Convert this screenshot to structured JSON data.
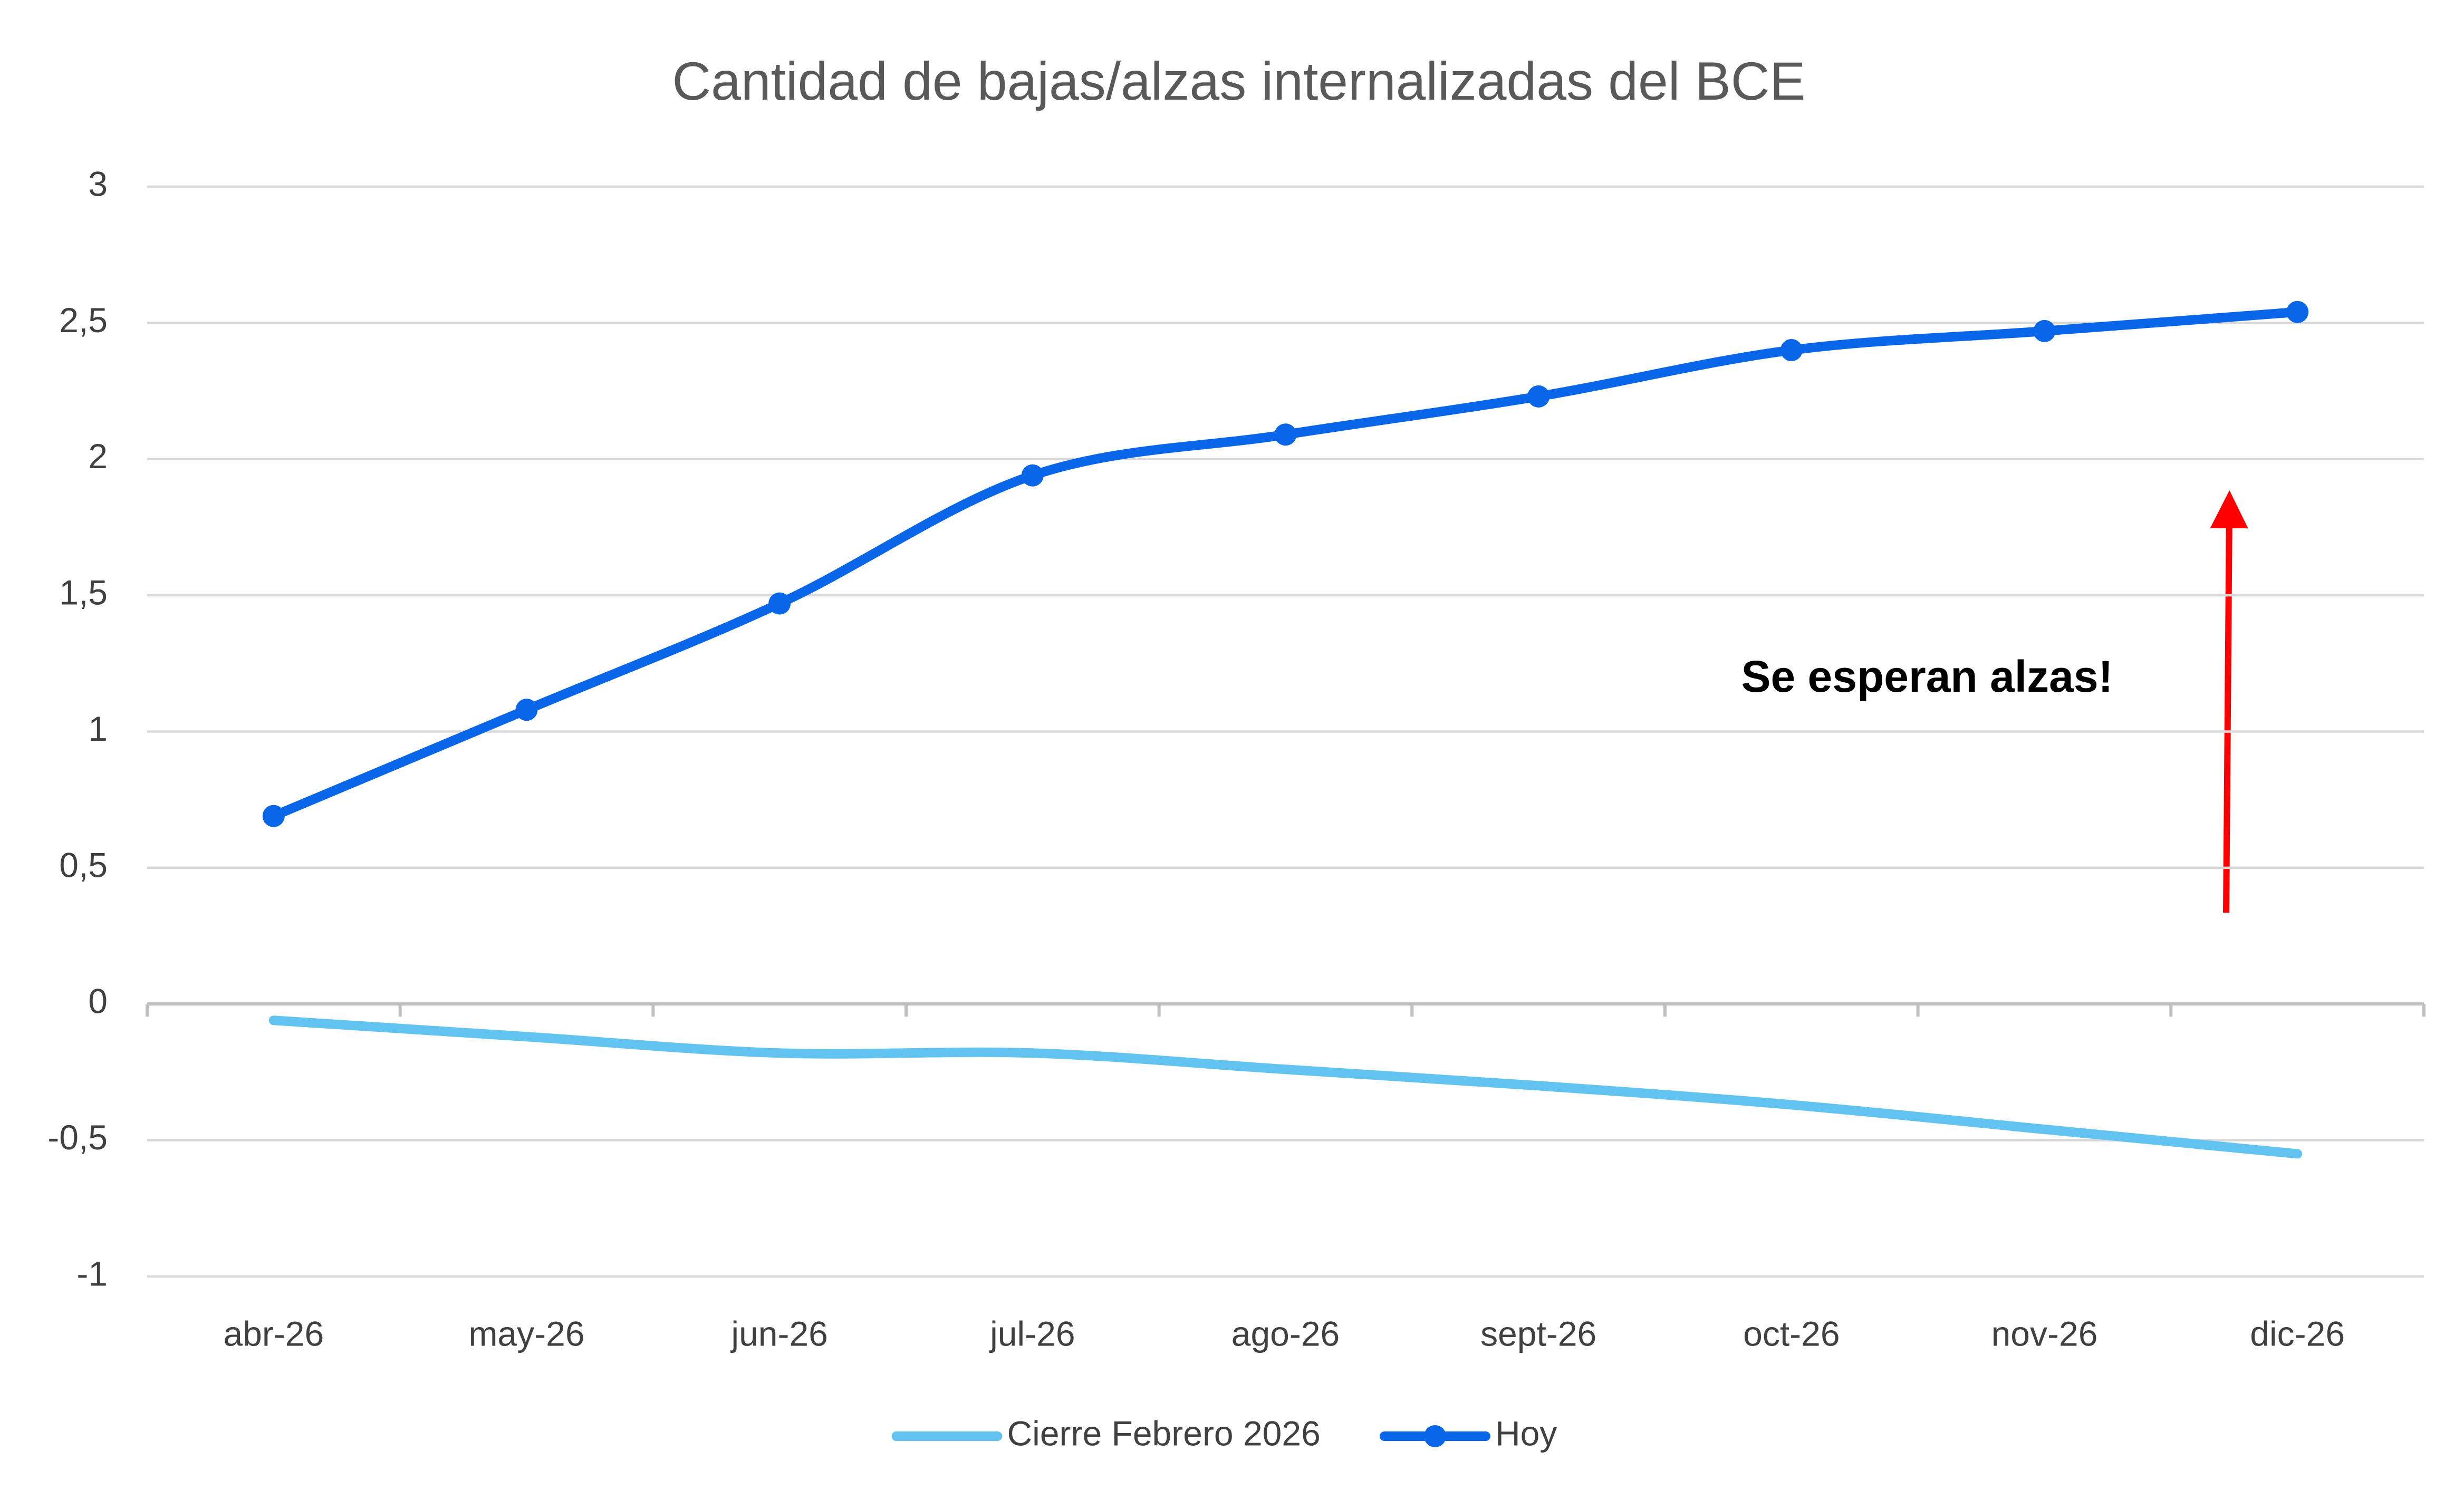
{
  "chart_data": {
    "type": "line",
    "title": "Cantidad de bajas/alzas internalizadas del BCE",
    "categories": [
      "abr-26",
      "may-26",
      "jun-26",
      "jul-26",
      "ago-26",
      "sept-26",
      "oct-26",
      "nov-26",
      "dic-26"
    ],
    "series": [
      {
        "name": "Cierre Febrero 2026",
        "color": "#63c3f0",
        "markers": false,
        "values": [
          -0.06,
          -0.12,
          -0.18,
          -0.18,
          -0.24,
          -0.3,
          -0.37,
          -0.46,
          -0.55
        ]
      },
      {
        "name": "Hoy",
        "color": "#0a66e8",
        "markers": true,
        "values": [
          0.69,
          1.08,
          1.47,
          1.94,
          2.09,
          2.23,
          2.4,
          2.47,
          2.54
        ]
      }
    ],
    "ylim": [
      -1,
      3
    ],
    "yticks": [
      {
        "value": -1,
        "label": "-1"
      },
      {
        "value": -0.5,
        "label": "-0,5"
      },
      0,
      {
        "value": 0.5,
        "label": "0,5"
      },
      1,
      {
        "value": 1.5,
        "label": "1,5"
      },
      2,
      {
        "value": 2.5,
        "label": "2,5"
      },
      3
    ],
    "grid": true,
    "smooth": true,
    "legend": "bottom",
    "annotation": "Se esperan alzas!"
  }
}
